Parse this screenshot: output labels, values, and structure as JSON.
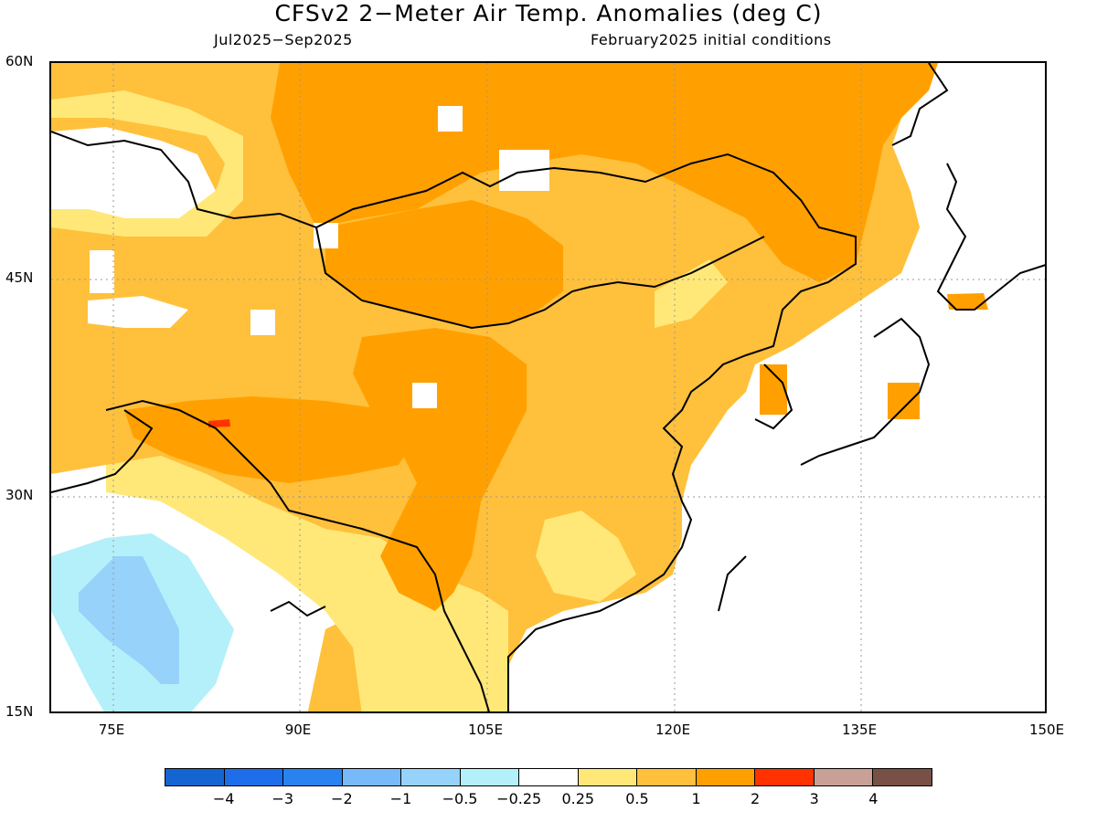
{
  "title": "CFSv2 2−Meter Air Temp. Anomalies (deg C)",
  "period": "Jul2025−Sep2025",
  "initial_conditions": "February2025 initial conditions",
  "lat_labels": [
    "60N",
    "45N",
    "30N",
    "15N"
  ],
  "lon_labels": [
    "75E",
    "90E",
    "105E",
    "120E",
    "135E",
    "150E"
  ],
  "legend": {
    "colors": [
      "#1464d2",
      "#1e6eeb",
      "#2882f0",
      "#78b9fa",
      "#96d2fa",
      "#b4f0fa",
      "#ffffff",
      "#ffe878",
      "#ffc03c",
      "#ffa000",
      "#ff3200",
      "#c8a096",
      "#785046"
    ],
    "labels": [
      "−4",
      "−3",
      "−2",
      "−1",
      "−0.5",
      "−0.25",
      "0.25",
      "0.5",
      "1",
      "2",
      "3",
      "4"
    ]
  },
  "map_extent": {
    "lon": [
      70,
      150
    ],
    "lat": [
      15,
      60
    ]
  }
}
